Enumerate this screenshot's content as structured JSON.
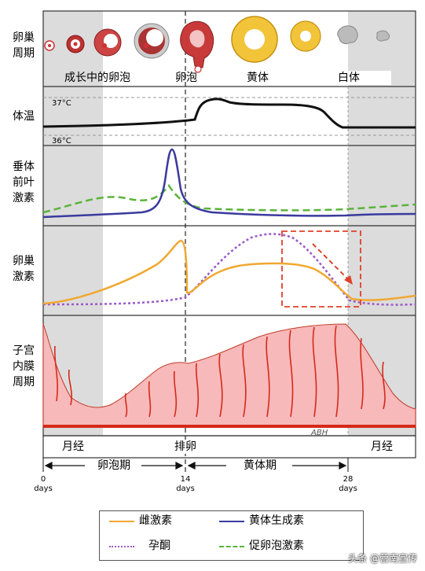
{
  "row_labels": {
    "ovary_cycle": "卵巢\n周期",
    "temperature": "体温",
    "pituitary": "垂体\n前叶\n激素",
    "ovarian_hormones": "卵巢\n激素",
    "endometrium": "子宫\n内膜\n周期"
  },
  "ovary_stages": {
    "growing_follicle": "成长中的卵泡",
    "follicle": "卵泡",
    "corpus_luteum": "黄体",
    "corpus_albicans": "白体"
  },
  "temperature": {
    "high": "37°C",
    "low": "36°C"
  },
  "phases": {
    "menses": "月经",
    "ovulation": "排卵",
    "follicular": "卵泡期",
    "luteal": "黄体期"
  },
  "ticks": [
    {
      "day": "0",
      "unit": "days"
    },
    {
      "day": "14",
      "unit": "days"
    },
    {
      "day": "28",
      "unit": "days"
    }
  ],
  "legend": {
    "estrogen": "雌激素",
    "lh": "黄体生成素",
    "progesterone": "孕酮",
    "fsh": "促卵泡激素"
  },
  "colors": {
    "estrogen": "#f0a830",
    "lh": "#3a3a9e",
    "progesterone": "#9a5ac8",
    "fsh": "#5ab43a",
    "endometrium_fill": "#f7b9b9",
    "vessel": "#d52a1a",
    "menses_shade": "#d8d8d8",
    "highlight_box": "#e0402a"
  },
  "signature": "ABH",
  "watermark": "头条 @营南宣传"
}
